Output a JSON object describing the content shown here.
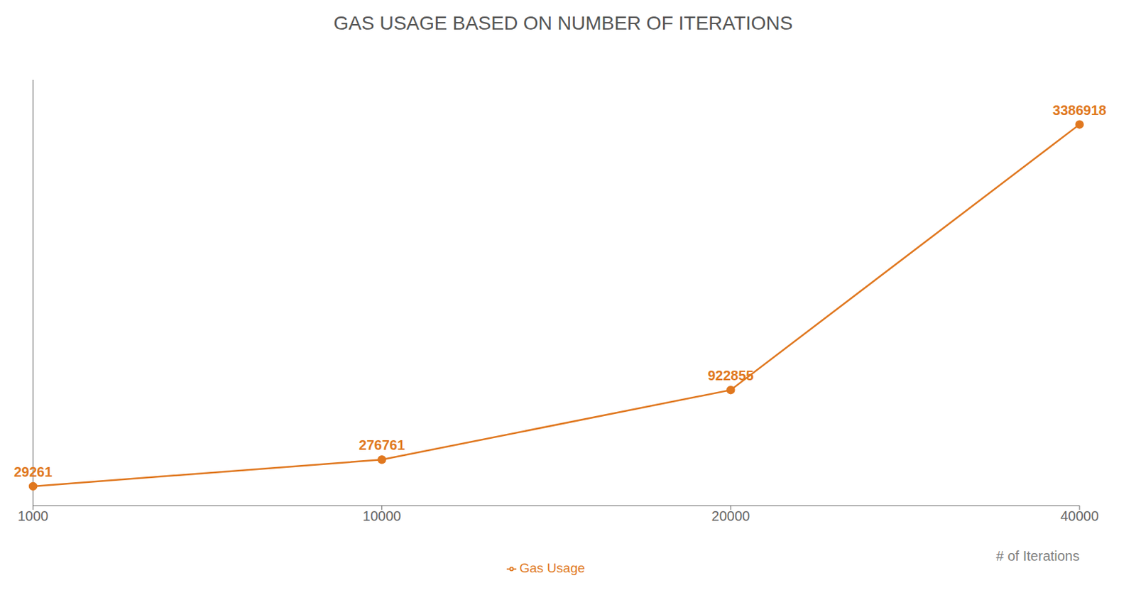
{
  "chart_data": {
    "type": "line",
    "title": "GAS USAGE BASED ON NUMBER OF ITERATIONS",
    "x_label": "# of Iterations",
    "categories": [
      "1000",
      "10000",
      "20000",
      "40000"
    ],
    "series": [
      {
        "name": "Gas Usage",
        "color": "#E07820",
        "values": [
          29261,
          276761,
          922855,
          3386918
        ]
      }
    ],
    "ylim": [
      -150000,
      3800000
    ],
    "tick_labels": "x",
    "data_labels": true,
    "legend": "bottom",
    "grid": false
  }
}
